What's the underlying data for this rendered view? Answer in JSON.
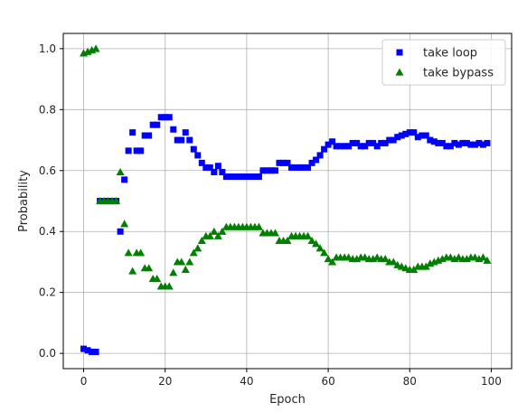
{
  "chart_data": {
    "type": "scatter",
    "xlabel": "Epoch",
    "ylabel": "Probability",
    "xlim": [
      -5,
      105
    ],
    "ylim": [
      -0.05,
      1.05
    ],
    "xticks": [
      0,
      20,
      40,
      60,
      80,
      100
    ],
    "yticks": [
      0.0,
      0.2,
      0.4,
      0.6,
      0.8,
      1.0
    ],
    "xtick_labels": [
      "0",
      "20",
      "40",
      "60",
      "80",
      "100"
    ],
    "ytick_labels": [
      "0.0",
      "0.2",
      "0.4",
      "0.6",
      "0.8",
      "1.0"
    ],
    "grid": true,
    "legend": "top-right",
    "x": [
      0,
      1,
      2,
      3,
      4,
      5,
      6,
      7,
      8,
      9,
      10,
      11,
      12,
      13,
      14,
      15,
      16,
      17,
      18,
      19,
      20,
      21,
      22,
      23,
      24,
      25,
      26,
      27,
      28,
      29,
      30,
      31,
      32,
      33,
      34,
      35,
      36,
      37,
      38,
      39,
      40,
      41,
      42,
      43,
      44,
      45,
      46,
      47,
      48,
      49,
      50,
      51,
      52,
      53,
      54,
      55,
      56,
      57,
      58,
      59,
      60,
      61,
      62,
      63,
      64,
      65,
      66,
      67,
      68,
      69,
      70,
      71,
      72,
      73,
      74,
      75,
      76,
      77,
      78,
      79,
      80,
      81,
      82,
      83,
      84,
      85,
      86,
      87,
      88,
      89,
      90,
      91,
      92,
      93,
      94,
      95,
      96,
      97,
      98,
      99
    ],
    "series": [
      {
        "name": "take loop",
        "color": "#0000ff",
        "marker": "square",
        "values": [
          0.015,
          0.01,
          0.005,
          0.005,
          0.5,
          0.5,
          0.5,
          0.5,
          0.5,
          0.4,
          0.57,
          0.665,
          0.725,
          0.665,
          0.665,
          0.715,
          0.715,
          0.75,
          0.75,
          0.775,
          0.775,
          0.775,
          0.735,
          0.7,
          0.7,
          0.725,
          0.7,
          0.67,
          0.65,
          0.625,
          0.61,
          0.61,
          0.595,
          0.615,
          0.595,
          0.58,
          0.58,
          0.58,
          0.58,
          0.58,
          0.58,
          0.58,
          0.58,
          0.58,
          0.6,
          0.6,
          0.6,
          0.6,
          0.625,
          0.625,
          0.625,
          0.61,
          0.61,
          0.61,
          0.61,
          0.61,
          0.625,
          0.635,
          0.65,
          0.67,
          0.685,
          0.695,
          0.68,
          0.68,
          0.68,
          0.68,
          0.69,
          0.69,
          0.68,
          0.68,
          0.69,
          0.69,
          0.68,
          0.69,
          0.69,
          0.7,
          0.7,
          0.71,
          0.715,
          0.72,
          0.725,
          0.725,
          0.71,
          0.715,
          0.715,
          0.7,
          0.695,
          0.69,
          0.69,
          0.68,
          0.68,
          0.69,
          0.685,
          0.69,
          0.69,
          0.685,
          0.685,
          0.69,
          0.685,
          0.69
        ]
      },
      {
        "name": "take bypass",
        "color": "#008000",
        "marker": "triangle",
        "values": [
          0.985,
          0.99,
          0.995,
          1.0,
          0.5,
          0.5,
          0.5,
          0.5,
          0.5,
          0.595,
          0.425,
          0.33,
          0.27,
          0.33,
          0.33,
          0.28,
          0.28,
          0.245,
          0.245,
          0.22,
          0.22,
          0.22,
          0.265,
          0.3,
          0.3,
          0.275,
          0.3,
          0.33,
          0.345,
          0.37,
          0.385,
          0.385,
          0.4,
          0.385,
          0.4,
          0.415,
          0.415,
          0.415,
          0.415,
          0.415,
          0.415,
          0.415,
          0.415,
          0.415,
          0.395,
          0.395,
          0.395,
          0.395,
          0.37,
          0.37,
          0.37,
          0.385,
          0.385,
          0.385,
          0.385,
          0.385,
          0.37,
          0.36,
          0.345,
          0.33,
          0.31,
          0.3,
          0.315,
          0.315,
          0.315,
          0.315,
          0.31,
          0.31,
          0.315,
          0.315,
          0.31,
          0.31,
          0.315,
          0.31,
          0.31,
          0.3,
          0.3,
          0.29,
          0.285,
          0.28,
          0.275,
          0.275,
          0.285,
          0.285,
          0.285,
          0.295,
          0.3,
          0.305,
          0.31,
          0.315,
          0.315,
          0.31,
          0.315,
          0.31,
          0.31,
          0.315,
          0.315,
          0.31,
          0.315,
          0.305
        ]
      }
    ]
  }
}
